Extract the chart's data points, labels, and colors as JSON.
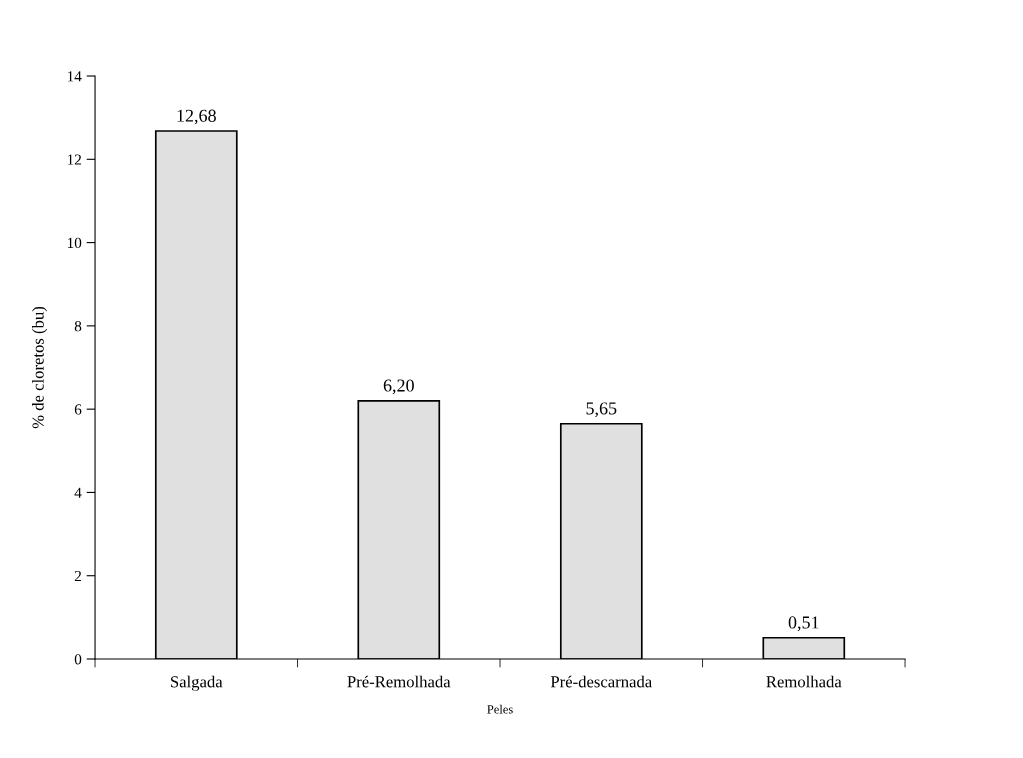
{
  "chart_data": {
    "type": "bar",
    "xlabel": "Peles",
    "ylabel": "% de cloretos (bu)",
    "categories": [
      "Salgada",
      "Pré-Remolhada",
      "Pré-descarnada",
      "Remolhada"
    ],
    "values": [
      12.68,
      6.2,
      5.65,
      0.51
    ],
    "value_labels": [
      "12,68",
      "6,20",
      "5,65",
      "0,51"
    ],
    "color": "#e0e0e0",
    "ylim": [
      0,
      14
    ],
    "yticks": [
      0,
      2,
      4,
      6,
      8,
      10,
      12,
      14
    ]
  }
}
